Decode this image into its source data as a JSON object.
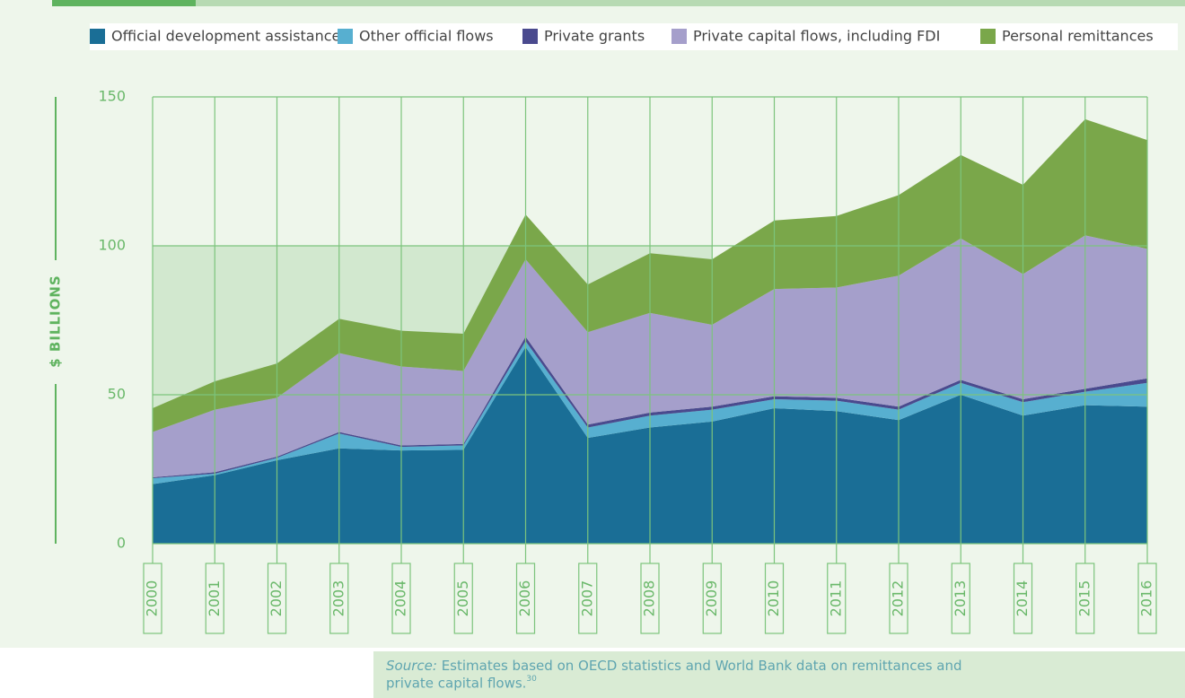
{
  "chart_data": {
    "type": "stacked_area",
    "y_label": "$ BILLIONS",
    "categories": [
      "2000",
      "2001",
      "2002",
      "2003",
      "2004",
      "2005",
      "2006",
      "2007",
      "2008",
      "2009",
      "2010",
      "2011",
      "2012",
      "2013",
      "2014",
      "2015",
      "2016"
    ],
    "series": [
      {
        "name": "Official development assistance",
        "color": "#1a6e96",
        "values": [
          20,
          23,
          28,
          32,
          31.3,
          31.5,
          66,
          35.5,
          39,
          41,
          45.5,
          44.5,
          41.5,
          50,
          43,
          46.5,
          46
        ]
      },
      {
        "name": "Other official flows",
        "color": "#57afd0",
        "values": [
          2,
          0.5,
          0.8,
          5,
          1.2,
          1.5,
          2,
          3.5,
          4,
          4,
          3,
          3.5,
          3.5,
          4,
          4.5,
          4.5,
          8
        ]
      },
      {
        "name": "Private grants",
        "color": "#4a4a8e",
        "values": [
          0.3,
          0.5,
          0.4,
          0.5,
          0.5,
          0.5,
          1.5,
          1,
          1,
          1,
          1,
          1,
          1,
          1,
          1,
          1,
          1.5
        ]
      },
      {
        "name": "Private capital flows, including FDI",
        "color": "#a59fcb",
        "values": [
          15.2,
          21,
          19.8,
          26.5,
          26.5,
          24.5,
          26,
          31,
          33.5,
          27.5,
          36,
          37,
          44,
          47.5,
          42,
          51.5,
          43.5
        ]
      },
      {
        "name": "Personal remittances",
        "color": "#7aa74a",
        "values": [
          8,
          9.5,
          11.5,
          11.5,
          12,
          12.5,
          15,
          16,
          20,
          22,
          23,
          24,
          27,
          28,
          30,
          39,
          36.5
        ]
      }
    ],
    "ylim": [
      0,
      150
    ],
    "yticks": [
      0,
      50,
      100,
      150
    ],
    "grid": true,
    "source": {
      "label": "Source:",
      "text": "Estimates based on OECD statistics and World Bank data on remittances and private capital flows.",
      "note": "30"
    }
  }
}
